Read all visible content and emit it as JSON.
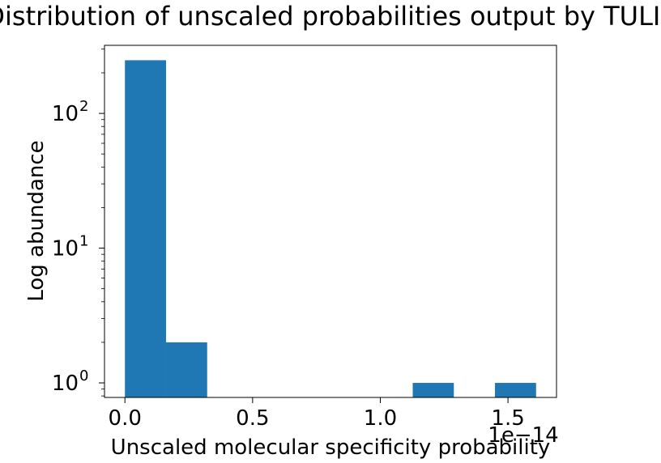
{
  "chart_data": {
    "type": "bar",
    "title": "Distribution of unscaled probabilities output by TULIP",
    "xlabel": "Unscaled molecular specificity probability",
    "ylabel": "Log abundance",
    "x_offset_text": "1e−14",
    "x_scale_exponent": -14,
    "y_scale": "log",
    "xlim": [
      -0.08,
      1.69
    ],
    "ylim": [
      0.78,
      320
    ],
    "x_ticks": [
      {
        "value": 0.0,
        "label": "0.0"
      },
      {
        "value": 0.5,
        "label": "0.5"
      },
      {
        "value": 1.0,
        "label": "1.0"
      },
      {
        "value": 1.5,
        "label": "1.5"
      }
    ],
    "y_ticks": [
      {
        "value": 1,
        "base": "10",
        "exp": "0"
      },
      {
        "value": 10,
        "base": "10",
        "exp": "1"
      },
      {
        "value": 100,
        "base": "10",
        "exp": "2"
      }
    ],
    "bins": [
      {
        "x0": 0.0,
        "x1": 0.161,
        "count": 248
      },
      {
        "x0": 0.161,
        "x1": 0.322,
        "count": 2
      },
      {
        "x0": 0.322,
        "x1": 0.483,
        "count": 0
      },
      {
        "x0": 0.483,
        "x1": 0.644,
        "count": 0
      },
      {
        "x0": 0.644,
        "x1": 0.805,
        "count": 0
      },
      {
        "x0": 0.805,
        "x1": 0.966,
        "count": 0
      },
      {
        "x0": 0.966,
        "x1": 1.127,
        "count": 0
      },
      {
        "x0": 1.127,
        "x1": 1.288,
        "count": 1
      },
      {
        "x0": 1.288,
        "x1": 1.449,
        "count": 0
      },
      {
        "x0": 1.449,
        "x1": 1.61,
        "count": 1
      }
    ],
    "bar_color": "#1f77b4",
    "grid": false,
    "legend": "none"
  }
}
